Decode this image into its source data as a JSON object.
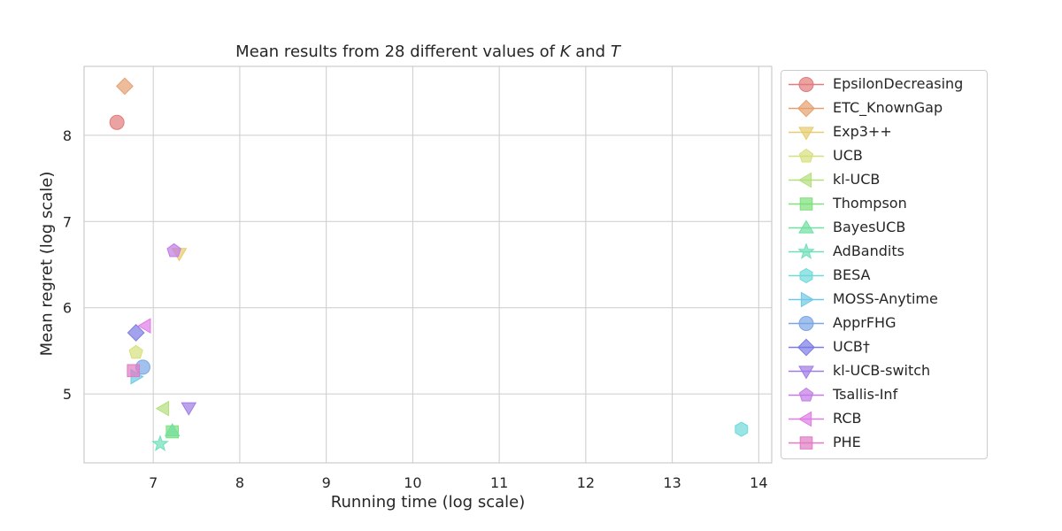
{
  "chart_data": {
    "type": "scatter",
    "title_prefix": "Mean results from 28 different values of ",
    "title_k": "K",
    "title_and": " and ",
    "title_t": "T",
    "xlabel": "Running time (log scale)",
    "ylabel": "Mean regret (log scale)",
    "xlim": [
      6.2,
      14.15
    ],
    "ylim": [
      4.2,
      8.8
    ],
    "xticks": [
      7,
      8,
      9,
      10,
      11,
      12,
      13,
      14
    ],
    "yticks": [
      5,
      6,
      7,
      8
    ],
    "grid": true,
    "legend_position": "right",
    "series": [
      {
        "name": "EpsilonDecreasing",
        "marker": "circle",
        "color": "#e17b7b",
        "x": 6.58,
        "y": 8.15
      },
      {
        "name": "ETC_KnownGap",
        "marker": "diamond",
        "color": "#e6a070",
        "x": 6.67,
        "y": 8.57
      },
      {
        "name": "Exp3++",
        "marker": "tri-down",
        "color": "#e6cc6e",
        "x": 7.3,
        "y": 6.63
      },
      {
        "name": "UCB",
        "marker": "pentagon",
        "color": "#d5e07a",
        "x": 6.8,
        "y": 5.48
      },
      {
        "name": "kl-UCB",
        "marker": "tri-left",
        "color": "#b2e07a",
        "x": 7.12,
        "y": 4.83
      },
      {
        "name": "Thompson",
        "marker": "square",
        "color": "#7ee07a",
        "x": 7.22,
        "y": 4.56
      },
      {
        "name": "BayesUCB",
        "marker": "tri-up",
        "color": "#6ee0a0",
        "x": 7.22,
        "y": 4.57
      },
      {
        "name": "AdBandits",
        "marker": "star",
        "color": "#6ee0bb",
        "x": 7.08,
        "y": 4.42
      },
      {
        "name": "BESA",
        "marker": "hexagon",
        "color": "#6ed9d9",
        "x": 13.8,
        "y": 4.59
      },
      {
        "name": "MOSS-Anytime",
        "marker": "tri-right",
        "color": "#6ec8e6",
        "x": 6.8,
        "y": 5.2
      },
      {
        "name": "ApprFHG",
        "marker": "circle",
        "color": "#7ba6e6",
        "x": 6.88,
        "y": 5.31
      },
      {
        "name": "UCB†",
        "marker": "diamond",
        "color": "#7b7be6",
        "x": 6.8,
        "y": 5.71
      },
      {
        "name": "kl-UCB-switch",
        "marker": "tri-down",
        "color": "#a07be6",
        "x": 7.41,
        "y": 4.84
      },
      {
        "name": "Tsallis-Inf",
        "marker": "pentagon",
        "color": "#c27be6",
        "x": 7.24,
        "y": 6.66
      },
      {
        "name": "RCB",
        "marker": "tri-left",
        "color": "#e07be6",
        "x": 6.91,
        "y": 5.79
      },
      {
        "name": "PHE",
        "marker": "square",
        "color": "#e07bc2",
        "x": 6.77,
        "y": 5.27
      }
    ]
  }
}
